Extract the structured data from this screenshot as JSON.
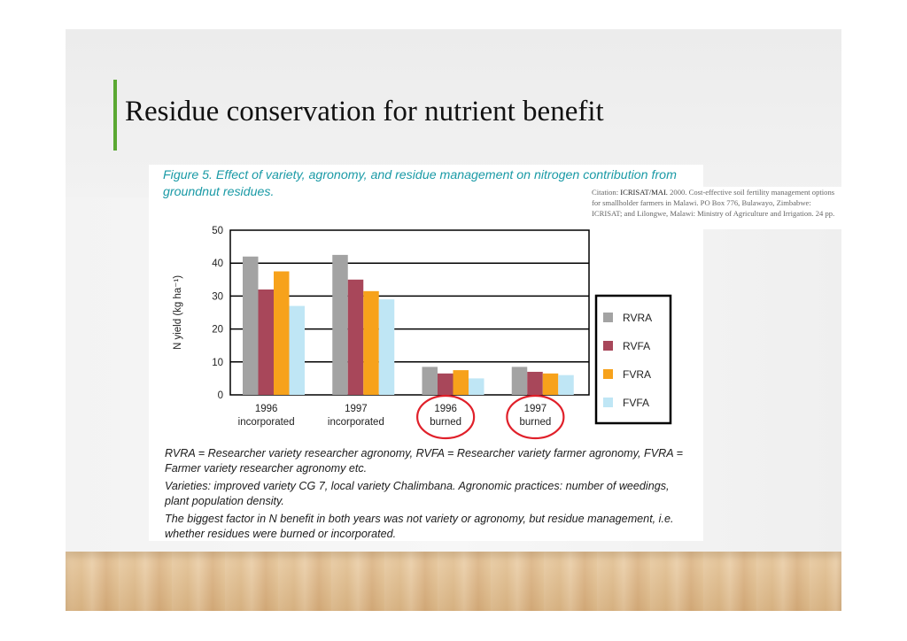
{
  "slide": {
    "title": "Residue conservation for nutrient benefit",
    "accent_color": "#5aa832"
  },
  "citation": {
    "label": "Citation:",
    "source": "ICRISAT/MAI.",
    "text": " 2000. Cost-effective soil fertility management options for smallholder farmers in Malawi. PO Box 776, Bulawayo, Zimbabwe: ICRISAT; and Lilongwe, Malawi: Ministry of Agriculture and Irrigation. 24 pp."
  },
  "figure": {
    "caption": "Figure 5. Effect of variety, agronomy, and residue management on nitrogen contribution from groundnut residues.",
    "notes": [
      "RVRA = Researcher variety researcher agronomy, RVFA = Researcher variety farmer agronomy, FVRA = Farmer variety researcher agronomy etc.",
      "Varieties: improved variety CG 7, local variety Chalimbana. Agronomic practices: number of weedings, plant population density.",
      "The biggest factor in N benefit in both years was not variety or agronomy, but residue management, i.e. whether residues were burned or incorporated."
    ]
  },
  "chart_data": {
    "type": "bar",
    "title": "",
    "xlabel": "",
    "ylabel": "N yield (kg ha⁻¹)",
    "ylim": [
      0,
      50
    ],
    "yticks": [
      0,
      10,
      20,
      30,
      40,
      50
    ],
    "grid": true,
    "legend_position": "right",
    "categories": [
      [
        "1996",
        "incorporated"
      ],
      [
        "1997",
        "incorporated"
      ],
      [
        "1996",
        "burned"
      ],
      [
        "1997",
        "burned"
      ]
    ],
    "highlighted_categories": [
      2,
      3
    ],
    "highlight_color": "#e0202a",
    "series": [
      {
        "name": "RVRA",
        "color": "#a3a3a3",
        "values": [
          42,
          42.5,
          8.5,
          8.5
        ]
      },
      {
        "name": "RVFA",
        "color": "#a8475a",
        "values": [
          32,
          35,
          6.5,
          7
        ]
      },
      {
        "name": "FVRA",
        "color": "#f7a21b",
        "values": [
          37.5,
          31.5,
          7.5,
          6.5
        ]
      },
      {
        "name": "FVFA",
        "color": "#bfe6f5",
        "values": [
          27,
          29,
          5,
          6
        ]
      }
    ]
  }
}
